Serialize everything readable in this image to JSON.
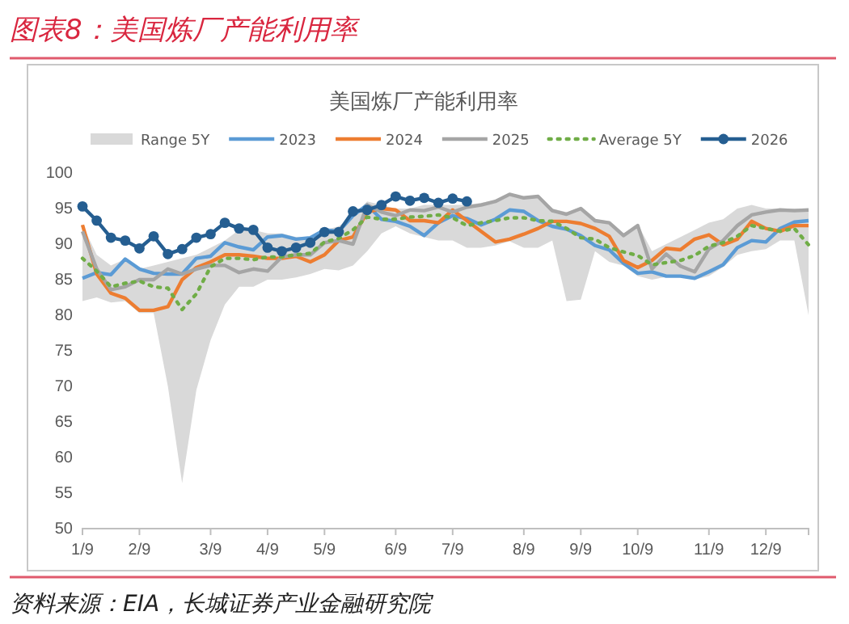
{
  "chart_data": {
    "type": "line",
    "title": "图表8：美国炼厂产能利用率",
    "subtitle": "美国炼厂产能利用率",
    "annotations": [
      "资料来源：EIA，长城证券产业金融研究院"
    ],
    "categories": [
      "1/9",
      null,
      null,
      null,
      "2/9",
      null,
      null,
      null,
      null,
      "3/9",
      null,
      null,
      null,
      "4/9",
      null,
      null,
      null,
      "5/9",
      null,
      null,
      null,
      null,
      "6/9",
      null,
      null,
      null,
      "7/9",
      null,
      null,
      null,
      null,
      "8/9",
      null,
      null,
      null,
      "9/9",
      null,
      null,
      null,
      "10/9",
      null,
      null,
      null,
      null,
      "11/9",
      null,
      null,
      null,
      "12/9",
      null,
      null,
      null
    ],
    "ylim": [
      50,
      100
    ],
    "yticks": [
      50,
      55,
      60,
      65,
      70,
      75,
      80,
      85,
      90,
      95,
      100
    ],
    "grid": false,
    "legend": "top",
    "series": [
      {
        "name": "Range 5Y",
        "type": "area",
        "color": "#d9d9d9",
        "lower": [
          82,
          82.5,
          81.8,
          82,
          80.3,
          80.3,
          70,
          56.4,
          69.5,
          76.5,
          81.5,
          84,
          84,
          85,
          85,
          85.3,
          85.8,
          86.5,
          86.3,
          87,
          89,
          91.5,
          92.5,
          91.5,
          91,
          90.5,
          90.5,
          89.5,
          89.5,
          89.8,
          90.4,
          89.5,
          89.5,
          90.5,
          82,
          82.2,
          89,
          87.5,
          87,
          85.5,
          85,
          85.4,
          85.4,
          85,
          85.5,
          86.8,
          88.5,
          89,
          89.3,
          90.5,
          90.5,
          80
        ],
        "values": [
          null,
          null,
          null,
          null,
          null,
          null,
          null,
          null,
          null,
          null,
          null,
          null,
          null,
          null,
          null,
          null,
          null,
          null,
          null,
          null,
          null,
          null,
          null,
          null,
          null,
          null,
          null,
          null,
          null,
          null,
          null,
          null,
          null,
          null,
          null,
          null,
          null,
          null,
          null,
          null,
          null,
          null,
          null,
          null,
          null,
          null,
          null,
          null,
          null,
          null,
          null,
          null
        ],
        "upper": [
          92.7,
          88.5,
          87,
          87.9,
          86.5,
          87,
          87.5,
          88,
          88.5,
          89.5,
          90.5,
          92,
          92,
          91.5,
          91.5,
          91,
          91,
          92,
          92.5,
          94,
          96,
          95.5,
          95,
          95,
          95.5,
          95.5,
          95.5,
          95.5,
          95.8,
          96.2,
          97,
          96.7,
          96.8,
          95,
          94.5,
          95.2,
          93.5,
          93.2,
          91.5,
          92.8,
          89,
          90,
          91,
          92,
          93,
          93.5,
          95,
          95.5,
          95,
          95,
          95,
          95
        ]
      },
      {
        "name": "2023",
        "color": "#5b9bd5",
        "values": [
          85.2,
          86,
          85.7,
          87.9,
          86.5,
          85.9,
          85.8,
          85.8,
          88,
          88.3,
          90.2,
          89.6,
          89.2,
          91,
          91.2,
          90.7,
          90.9,
          92,
          91.8,
          94,
          95.5,
          93.5,
          93.2,
          92.5,
          91.2,
          93,
          94,
          93.6,
          92.7,
          93.5,
          94.8,
          94.6,
          93.3,
          92.5,
          92.1,
          91.2,
          89.8,
          89.2,
          87.3,
          85.9,
          86.1,
          85.5,
          85.5,
          85.2,
          86.1,
          87.1,
          89.5,
          90.5,
          90.3,
          92.2,
          93.1,
          93.3
        ]
      },
      {
        "name": "2024",
        "color": "#ed7d31",
        "values": [
          92.7,
          85.8,
          83.1,
          82.4,
          80.7,
          80.7,
          81.2,
          85,
          86.7,
          87.5,
          88.5,
          88.5,
          88.3,
          88,
          88,
          88.3,
          87.5,
          88.5,
          90.5,
          91,
          94.5,
          95,
          94.8,
          93.3,
          93.3,
          93,
          94.8,
          93.3,
          91.8,
          90.3,
          90.7,
          91.4,
          92.2,
          93.2,
          93.2,
          92.9,
          92.2,
          91.1,
          87.7,
          86.7,
          87.7,
          89.4,
          89.2,
          90.7,
          91.3,
          89.9,
          90.7,
          93.2,
          92.2,
          91.8,
          92.6,
          92.6
        ]
      },
      {
        "name": "2025",
        "color": "#a5a5a5",
        "values": [
          91.8,
          86.5,
          83.6,
          84,
          85,
          85,
          86.5,
          85.8,
          86.5,
          87,
          87,
          86,
          86.5,
          86.2,
          88.2,
          88.5,
          88.5,
          90.2,
          90.5,
          90,
          95.5,
          94.5,
          94,
          94.8,
          94.7,
          95.2,
          94.5,
          95.2,
          95.5,
          96,
          97,
          96.5,
          96.7,
          94.7,
          94.2,
          95,
          93.3,
          93,
          91.2,
          92.6,
          86.5,
          88.6,
          86.9,
          86.1,
          89.3,
          90.5,
          92.6,
          94.1,
          94.5,
          94.8,
          94.7,
          94.8
        ]
      },
      {
        "name": "Average 5Y",
        "color": "#70ad47",
        "line_style": "dotted",
        "values": [
          88,
          86.2,
          84,
          84.5,
          84.8,
          84,
          83.8,
          80.8,
          83,
          86.8,
          88,
          88,
          87.8,
          88.2,
          88.2,
          88.5,
          88.7,
          90.3,
          90.8,
          92,
          93.8,
          93.5,
          93.5,
          93.8,
          93.9,
          94.1,
          93.7,
          92.6,
          93,
          93.3,
          93.7,
          93.7,
          93.3,
          93.2,
          92.2,
          90.9,
          90.7,
          89.5,
          88.9,
          88.4,
          87.1,
          87.4,
          87.7,
          88.4,
          89.7,
          90.2,
          91.1,
          92.6,
          92.2,
          91.8,
          92.2,
          89.9
        ]
      },
      {
        "name": "2026",
        "color": "#255e91",
        "marker": "circle",
        "values": [
          95.3,
          93.3,
          90.9,
          90.5,
          89.4,
          91.1,
          88.6,
          89.3,
          90.9,
          91.4,
          93,
          92.2,
          92,
          89.5,
          89,
          89.5,
          90.2,
          91.7,
          91.7,
          94.6,
          94.8,
          95.5,
          96.7,
          96.1,
          96.5,
          95.8,
          96.4,
          96,
          null,
          null,
          null,
          null,
          null,
          null,
          null,
          null,
          null,
          null,
          null,
          null,
          null,
          null,
          null,
          null,
          null,
          null,
          null,
          null,
          null,
          null,
          null,
          null
        ]
      }
    ]
  }
}
